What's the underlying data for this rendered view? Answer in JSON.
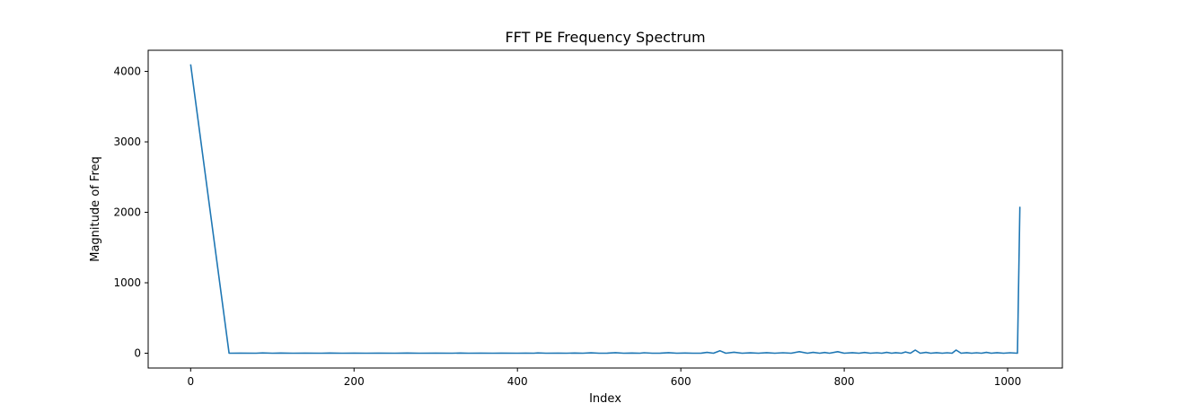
{
  "chart_data": {
    "type": "line",
    "title": "FFT PE Frequency Spectrum",
    "xlabel": "Index",
    "ylabel": "Magnitude of Freq",
    "xlim": [
      -52,
      1067
    ],
    "ylim": [
      -210,
      4300
    ],
    "xticks": [
      0,
      200,
      400,
      600,
      800,
      1000
    ],
    "yticks": [
      0,
      1000,
      2000,
      3000,
      4000
    ],
    "grid": false,
    "legend": "none",
    "colors": {
      "line": "#1f77b4",
      "axes": "#000000",
      "background": "#ffffff"
    },
    "series": [
      {
        "points": [
          [
            0,
            4100
          ],
          [
            47,
            0
          ],
          [
            60,
            1
          ],
          [
            80,
            0
          ],
          [
            88,
            4
          ],
          [
            100,
            0
          ],
          [
            110,
            3
          ],
          [
            125,
            0
          ],
          [
            140,
            2
          ],
          [
            160,
            0
          ],
          [
            170,
            3
          ],
          [
            185,
            0
          ],
          [
            200,
            2
          ],
          [
            215,
            0
          ],
          [
            230,
            2
          ],
          [
            250,
            0
          ],
          [
            265,
            3
          ],
          [
            280,
            0
          ],
          [
            300,
            1
          ],
          [
            320,
            0
          ],
          [
            330,
            3
          ],
          [
            340,
            0
          ],
          [
            355,
            2
          ],
          [
            370,
            0
          ],
          [
            380,
            2
          ],
          [
            400,
            0
          ],
          [
            410,
            2
          ],
          [
            420,
            0
          ],
          [
            425,
            4
          ],
          [
            435,
            0
          ],
          [
            450,
            2
          ],
          [
            460,
            0
          ],
          [
            470,
            3
          ],
          [
            480,
            0
          ],
          [
            490,
            5
          ],
          [
            500,
            0
          ],
          [
            510,
            2
          ],
          [
            520,
            8
          ],
          [
            530,
            0
          ],
          [
            540,
            3
          ],
          [
            550,
            0
          ],
          [
            555,
            6
          ],
          [
            565,
            0
          ],
          [
            575,
            2
          ],
          [
            585,
            8
          ],
          [
            595,
            0
          ],
          [
            605,
            3
          ],
          [
            615,
            0
          ],
          [
            625,
            2
          ],
          [
            632,
            12
          ],
          [
            640,
            0
          ],
          [
            648,
            35
          ],
          [
            655,
            0
          ],
          [
            665,
            14
          ],
          [
            675,
            0
          ],
          [
            685,
            5
          ],
          [
            695,
            0
          ],
          [
            705,
            8
          ],
          [
            715,
            0
          ],
          [
            725,
            6
          ],
          [
            735,
            0
          ],
          [
            745,
            22
          ],
          [
            755,
            0
          ],
          [
            762,
            12
          ],
          [
            770,
            0
          ],
          [
            776,
            10
          ],
          [
            782,
            0
          ],
          [
            792,
            22
          ],
          [
            800,
            0
          ],
          [
            810,
            8
          ],
          [
            818,
            0
          ],
          [
            825,
            10
          ],
          [
            832,
            0
          ],
          [
            840,
            6
          ],
          [
            846,
            0
          ],
          [
            852,
            12
          ],
          [
            858,
            0
          ],
          [
            863,
            8
          ],
          [
            870,
            0
          ],
          [
            875,
            18
          ],
          [
            881,
            0
          ],
          [
            887,
            45
          ],
          [
            893,
            0
          ],
          [
            900,
            12
          ],
          [
            906,
            0
          ],
          [
            913,
            8
          ],
          [
            920,
            0
          ],
          [
            926,
            6
          ],
          [
            932,
            0
          ],
          [
            937,
            45
          ],
          [
            943,
            0
          ],
          [
            950,
            8
          ],
          [
            956,
            0
          ],
          [
            962,
            6
          ],
          [
            968,
            0
          ],
          [
            974,
            12
          ],
          [
            980,
            0
          ],
          [
            987,
            8
          ],
          [
            995,
            0
          ],
          [
            1003,
            6
          ],
          [
            1012,
            0
          ],
          [
            1015,
            2080
          ]
        ]
      }
    ]
  }
}
